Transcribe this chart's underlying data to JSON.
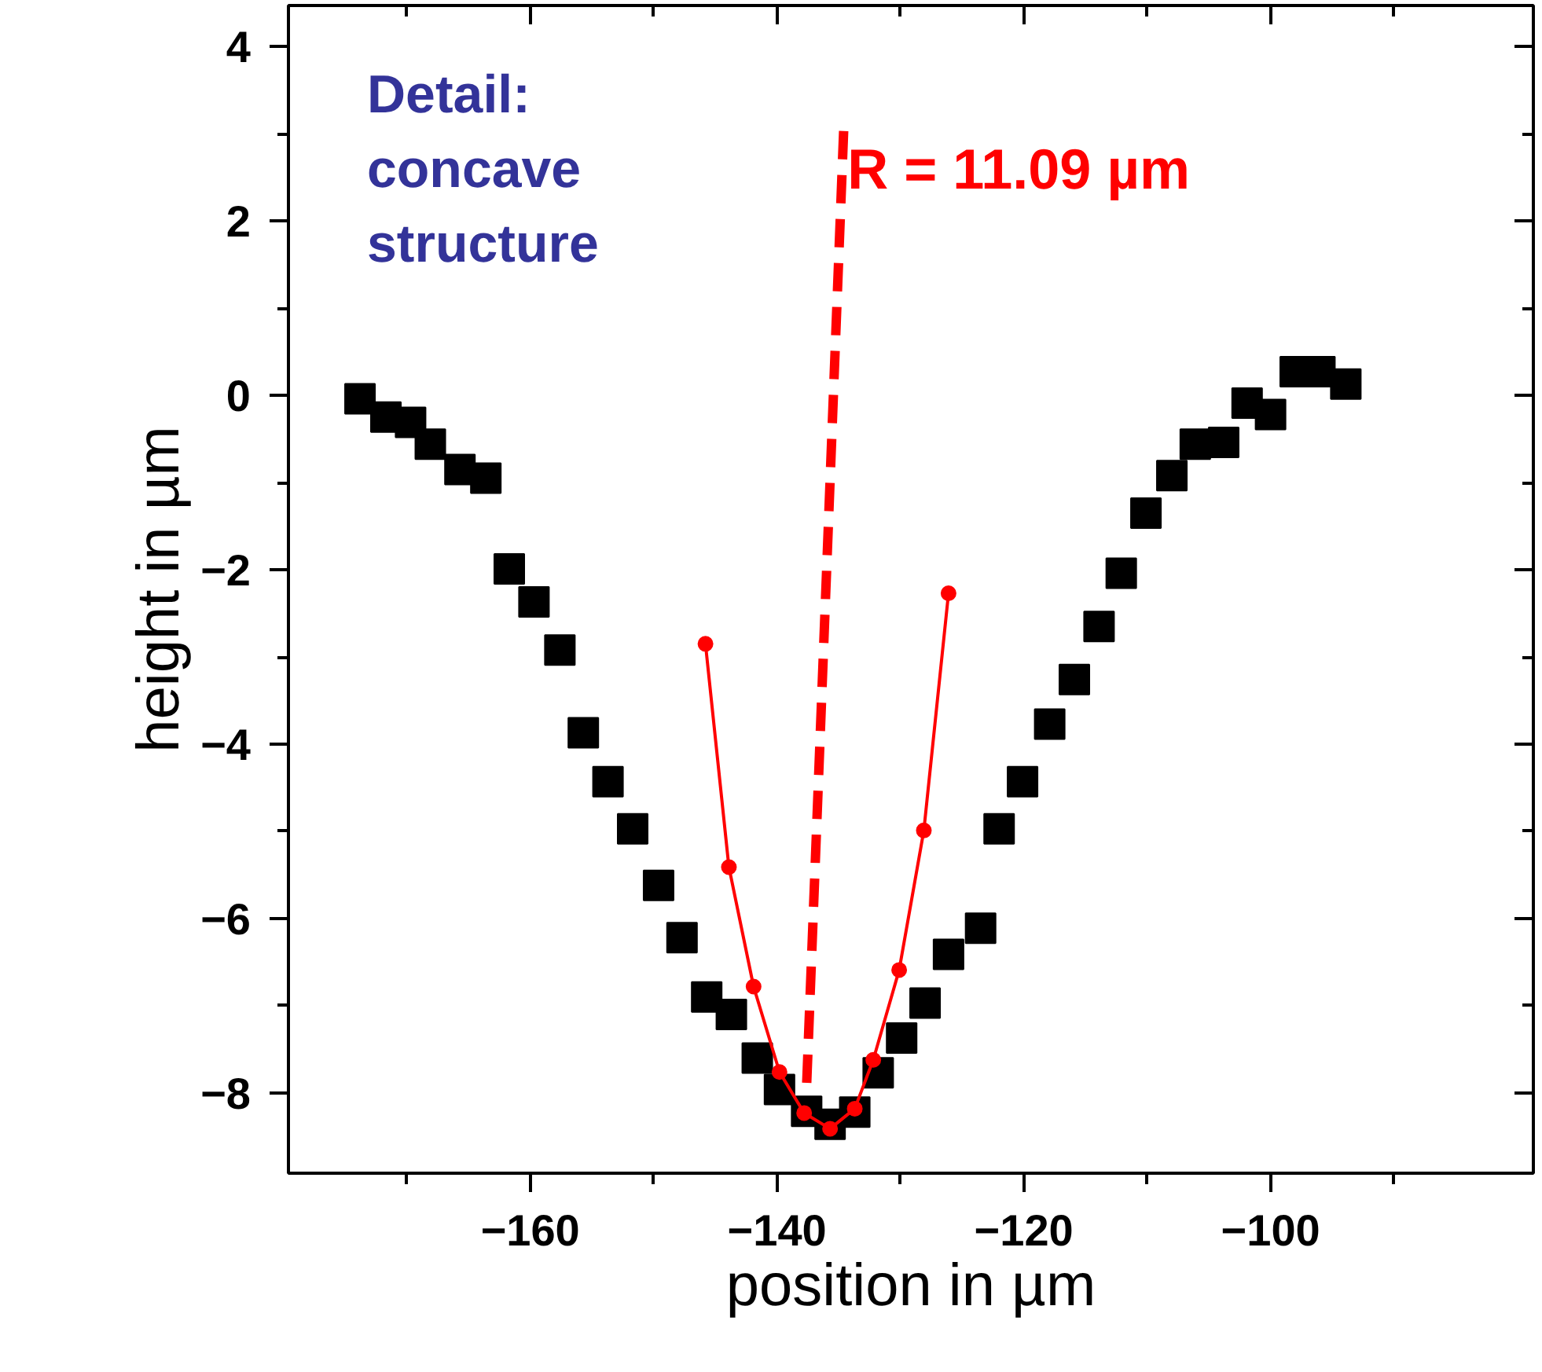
{
  "chart_data": {
    "type": "scatter",
    "xlabel": "position in µm",
    "ylabel": "height in µm",
    "annotations": [
      "Detail:\nconcave\nstructure",
      {
        "text": "R = 11.09 µm",
        "x": -134.3,
        "y": 2.6
      }
    ],
    "xlim": [
      -179.6,
      -78.7
    ],
    "ylim": [
      -8.92,
      4.47
    ],
    "xticks": [
      {
        "value": -170,
        "label": null
      },
      -160,
      {
        "value": -150,
        "label": null
      },
      -140,
      {
        "value": -130,
        "label": null
      },
      -120,
      {
        "value": -110,
        "label": null
      },
      -100,
      {
        "value": -90,
        "label": null
      }
    ],
    "yticks": [
      -8,
      {
        "value": -7,
        "label": null
      },
      -6,
      {
        "value": -5,
        "label": null
      },
      -4,
      {
        "value": -3,
        "label": null
      },
      -2,
      {
        "value": -1,
        "label": null
      },
      0,
      {
        "value": 1,
        "label": null
      },
      2,
      {
        "value": 3,
        "label": null
      },
      4
    ],
    "grid": false,
    "series": [
      {
        "marker": "square",
        "color": "#000000",
        "x": [
          -173.8,
          -171.7,
          -169.7,
          -168.1,
          -165.7,
          -163.6,
          -161.7,
          -159.7,
          -157.6,
          -155.7,
          -153.7,
          -151.7,
          -149.6,
          -147.7,
          -145.7,
          -143.7,
          -141.6,
          -139.8,
          -137.6,
          -135.7,
          -133.7,
          -131.8,
          -129.9,
          -128.0,
          -126.1,
          -123.5,
          -122.0,
          -120.1,
          -117.9,
          -115.9,
          -113.9,
          -112.1,
          -110.1,
          -108.0,
          -106.1,
          -103.8,
          -101.9,
          -100.0,
          -98.0,
          -96.0,
          -93.9
        ],
        "values": [
          -0.04,
          -0.25,
          -0.31,
          -0.56,
          -0.85,
          -0.95,
          -1.99,
          -2.37,
          -2.92,
          -3.87,
          -4.43,
          -4.97,
          -5.62,
          -6.22,
          -6.9,
          -7.1,
          -7.6,
          -7.96,
          -8.21,
          -8.36,
          -8.22,
          -7.77,
          -7.37,
          -6.97,
          -6.41,
          -6.11,
          -4.97,
          -4.43,
          -3.77,
          -3.26,
          -2.65,
          -2.04,
          -1.35,
          -0.92,
          -0.56,
          -0.54,
          -0.09,
          -0.22,
          0.27,
          0.27,
          0.13
        ]
      },
      {
        "type": "line",
        "marker": "circle",
        "line_style": "solid",
        "color": "#ff0000",
        "x": [
          -145.8,
          -143.9,
          -141.9,
          -139.8,
          -137.8,
          -135.7,
          -133.7,
          -132.2,
          -130.1,
          -128.1,
          -126.1
        ],
        "values": [
          -2.85,
          -5.41,
          -6.78,
          -7.76,
          -8.23,
          -8.41,
          -8.18,
          -7.62,
          -6.59,
          -4.99,
          -2.27
        ]
      },
      {
        "type": "line",
        "marker": "none",
        "line_style": "dashed",
        "color": "#ff0000",
        "x": [
          -134.6,
          -137.6
        ],
        "values": [
          3.03,
          -7.91
        ]
      }
    ]
  }
}
